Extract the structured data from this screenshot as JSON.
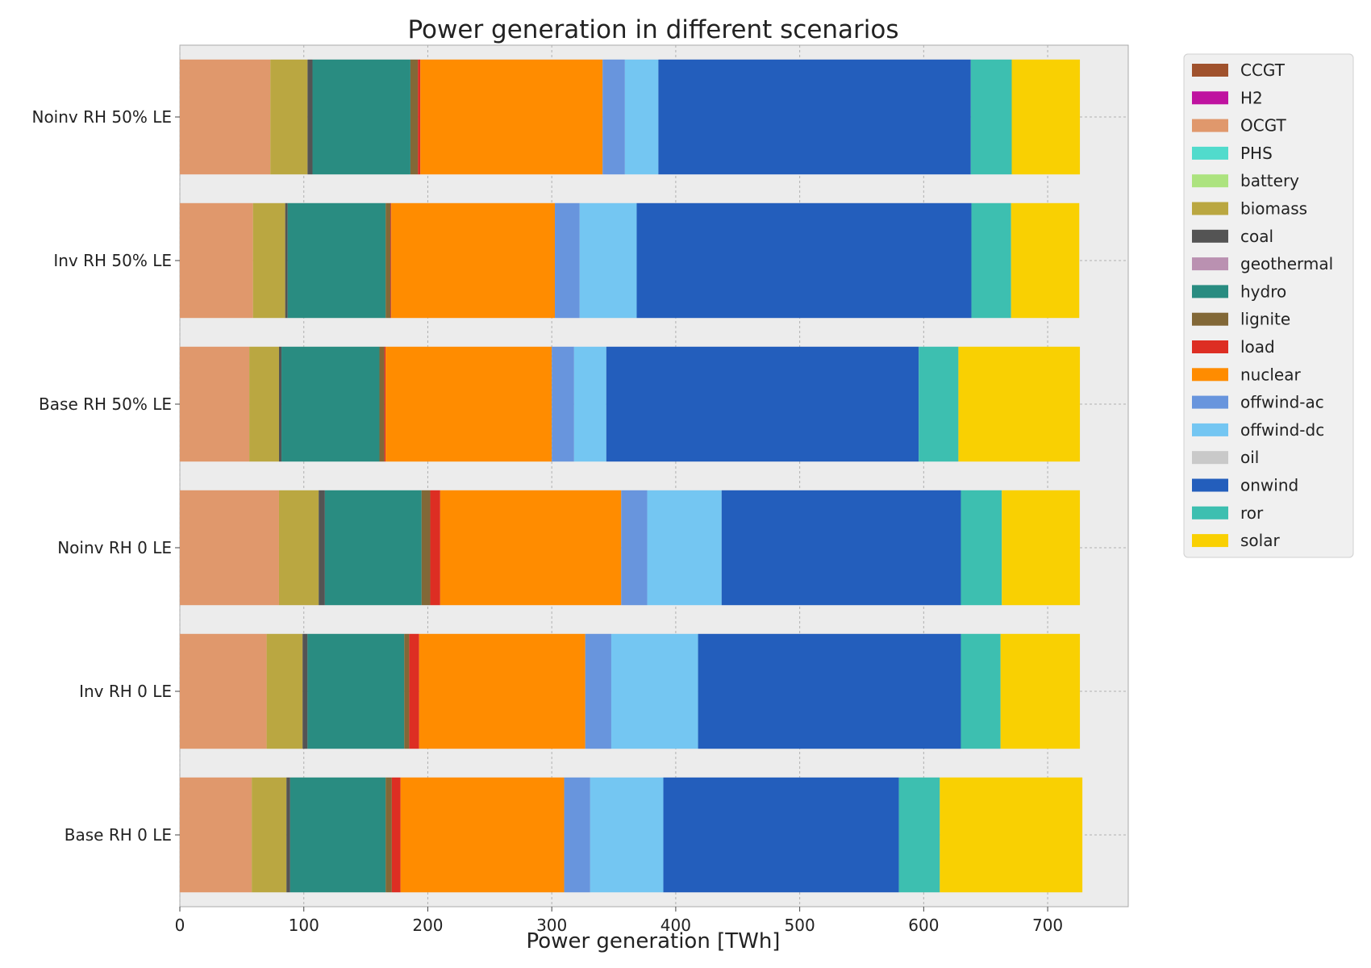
{
  "chart_data": {
    "type": "bar",
    "orientation": "horizontal",
    "stacked": true,
    "title": "Power generation in different scenarios",
    "xlabel": "Power generation [TWh]",
    "ylabel": "",
    "xlim": [
      0,
      765
    ],
    "xticks": [
      0,
      100,
      200,
      300,
      400,
      500,
      600,
      700
    ],
    "grid": true,
    "legend_position": "outside-right-top",
    "categories": [
      "Noinv RH 50% LE",
      "Inv RH 50% LE",
      "Base RH 50% LE",
      "Noinv RH 0 LE",
      "Inv RH 0 LE",
      "Base RH 0 LE"
    ],
    "series": [
      {
        "name": "CCGT",
        "color": "#a0522d",
        "values": [
          0,
          0,
          0,
          0,
          0,
          0
        ]
      },
      {
        "name": "H2",
        "color": "#bf13a0",
        "values": [
          0,
          0,
          0,
          0,
          0,
          0
        ]
      },
      {
        "name": "OCGT",
        "color": "#e0986c",
        "values": [
          73,
          59,
          56,
          80,
          70,
          58
        ]
      },
      {
        "name": "PHS",
        "color": "#51dbcc",
        "values": [
          0,
          0,
          0,
          0,
          0,
          0
        ]
      },
      {
        "name": "battery",
        "color": "#ace37f",
        "values": [
          0,
          0,
          0,
          0,
          0,
          0
        ]
      },
      {
        "name": "biomass",
        "color": "#baa741",
        "values": [
          30,
          26,
          24,
          32,
          29,
          28
        ]
      },
      {
        "name": "coal",
        "color": "#545454",
        "values": [
          4,
          2,
          2,
          5,
          4,
          3
        ]
      },
      {
        "name": "geothermal",
        "color": "#ba91b1",
        "values": [
          0,
          0,
          0,
          0,
          0,
          0
        ]
      },
      {
        "name": "hydro",
        "color": "#298c81",
        "values": [
          79,
          79,
          79,
          78,
          78,
          77
        ]
      },
      {
        "name": "lignite",
        "color": "#826837",
        "values": [
          6,
          4,
          4,
          7,
          4,
          5
        ]
      },
      {
        "name": "load",
        "color": "#dd2e23",
        "values": [
          2,
          0.5,
          1,
          8,
          8,
          7
        ]
      },
      {
        "name": "nuclear",
        "color": "#ff8c00",
        "values": [
          147,
          132,
          134,
          146,
          134,
          132
        ]
      },
      {
        "name": "offwind-ac",
        "color": "#6895dd",
        "values": [
          18,
          20,
          18,
          21,
          21,
          21
        ]
      },
      {
        "name": "offwind-dc",
        "color": "#74c6f2",
        "values": [
          27,
          46,
          26,
          60,
          70,
          59
        ]
      },
      {
        "name": "oil",
        "color": "#c9c9c9",
        "values": [
          0,
          0,
          0,
          0,
          0,
          0
        ]
      },
      {
        "name": "onwind",
        "color": "#235ebc",
        "values": [
          252,
          270,
          252,
          193,
          212,
          190
        ]
      },
      {
        "name": "ror",
        "color": "#3dbfb0",
        "values": [
          33,
          32,
          32,
          33,
          32,
          33
        ]
      },
      {
        "name": "solar",
        "color": "#f9d002",
        "values": [
          55,
          55,
          98,
          63,
          64,
          115
        ]
      }
    ]
  }
}
